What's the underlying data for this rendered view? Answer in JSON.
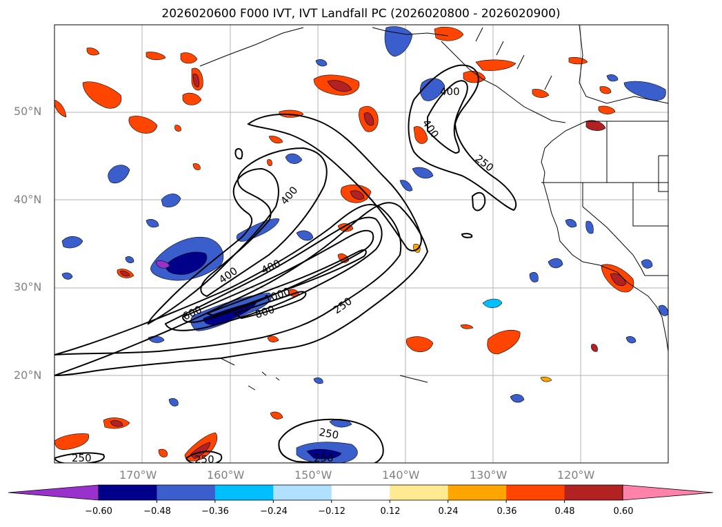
{
  "title": "2026020600 F000 IVT, IVT Landfall PC (2026020800 - 2026020900)",
  "lat_labels": [
    "50°N",
    "40°N",
    "30°N",
    "20°N"
  ],
  "lon_labels": [
    "170°W",
    "160°W",
    "150°W",
    "140°W",
    "130°W",
    "120°W"
  ],
  "contour_labels": [
    "400",
    "400",
    "250",
    "400",
    "400",
    "400",
    "600",
    "1000",
    "800",
    "250",
    "250",
    "250",
    "250",
    "250"
  ],
  "colorbar": {
    "ticks": [
      "−0.60",
      "−0.48",
      "−0.36",
      "−0.24",
      "−0.12",
      "0.12",
      "0.24",
      "0.36",
      "0.48",
      "0.60"
    ],
    "colors": [
      "#9932cc",
      "#00008b",
      "#3a5fcd",
      "#00bfff",
      "#b0e2ff",
      "#ffffff",
      "#ffe991",
      "#ffa500",
      "#ff4500",
      "#b22222",
      "#ff82ab"
    ]
  },
  "colors": {
    "negative_strong": "#00008b",
    "positive_strong": "#b22222",
    "contour": "#000000",
    "grid": "#b0b0b0"
  }
}
